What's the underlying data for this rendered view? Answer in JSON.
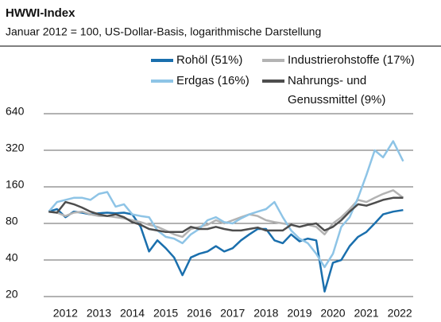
{
  "chart_data": {
    "type": "line",
    "title": "HWWI-Index",
    "subtitle": "Januar 2012 = 100, US-Dollar-Basis, logarithmische Darstellung",
    "log_scale": true,
    "grid": true,
    "x": [
      2012,
      2012.25,
      2012.5,
      2012.75,
      2013,
      2013.25,
      2013.5,
      2013.75,
      2014,
      2014.25,
      2014.5,
      2014.75,
      2015,
      2015.25,
      2015.5,
      2015.75,
      2016,
      2016.25,
      2016.5,
      2016.75,
      2017,
      2017.25,
      2017.5,
      2017.75,
      2018,
      2018.25,
      2018.5,
      2018.75,
      2019,
      2019.25,
      2019.5,
      2019.75,
      2020,
      2020.25,
      2020.5,
      2020.75,
      2021,
      2021.25,
      2021.5,
      2021.75,
      2022,
      2022.3,
      2022.6
    ],
    "xlim": [
      2011.85,
      2022.9
    ],
    "xticks": [
      {
        "value": 2012.5,
        "label": "2012"
      },
      {
        "value": 2013.5,
        "label": "2013"
      },
      {
        "value": 2014.5,
        "label": "2014"
      },
      {
        "value": 2015.5,
        "label": "2015"
      },
      {
        "value": 2016.5,
        "label": "2016"
      },
      {
        "value": 2017.5,
        "label": "2017"
      },
      {
        "value": 2018.5,
        "label": "2018"
      },
      {
        "value": 2019.5,
        "label": "2019"
      },
      {
        "value": 2020.5,
        "label": "2020"
      },
      {
        "value": 2021.5,
        "label": "2021"
      },
      {
        "value": 2022.5,
        "label": "2022"
      }
    ],
    "ylim": [
      20,
      640
    ],
    "yticks": [
      20,
      40,
      80,
      160,
      320,
      640
    ],
    "series": [
      {
        "name": "Rohöl (51%)",
        "color": "#1a6fad",
        "values": [
          100,
          105,
          90,
          100,
          98,
          95,
          97,
          98,
          97,
          98,
          95,
          75,
          47,
          58,
          50,
          42,
          30,
          42,
          45,
          47,
          52,
          47,
          50,
          58,
          65,
          72,
          72,
          58,
          55,
          65,
          57,
          60,
          58,
          22,
          38,
          40,
          52,
          62,
          68,
          80,
          95,
          100,
          103
        ]
      },
      {
        "name": "Industrierohstoffe (17%)",
        "color": "#b3b3b3",
        "values": [
          100,
          98,
          92,
          98,
          100,
          95,
          92,
          92,
          90,
          88,
          85,
          82,
          78,
          75,
          70,
          65,
          62,
          72,
          75,
          78,
          85,
          80,
          85,
          90,
          95,
          92,
          85,
          82,
          80,
          78,
          75,
          78,
          75,
          65,
          80,
          90,
          105,
          125,
          120,
          130,
          140,
          150,
          130
        ]
      },
      {
        "name": "Erdgas (16%)",
        "color": "#8ec4e6",
        "values": [
          100,
          120,
          125,
          130,
          130,
          125,
          140,
          145,
          110,
          115,
          95,
          92,
          90,
          70,
          62,
          60,
          55,
          65,
          72,
          85,
          90,
          82,
          80,
          88,
          95,
          100,
          105,
          120,
          90,
          70,
          60,
          55,
          45,
          35,
          45,
          75,
          90,
          130,
          200,
          320,
          280,
          380,
          260
        ]
      },
      {
        "name": "Nahrungs- und Genussmittel (9%)",
        "color": "#4d4d4d",
        "values": [
          100,
          98,
          120,
          115,
          108,
          100,
          95,
          92,
          95,
          90,
          82,
          78,
          72,
          70,
          68,
          68,
          68,
          75,
          72,
          72,
          75,
          72,
          70,
          70,
          72,
          74,
          70,
          70,
          70,
          78,
          75,
          78,
          80,
          70,
          75,
          85,
          100,
          115,
          112,
          118,
          125,
          130,
          130
        ]
      }
    ]
  }
}
